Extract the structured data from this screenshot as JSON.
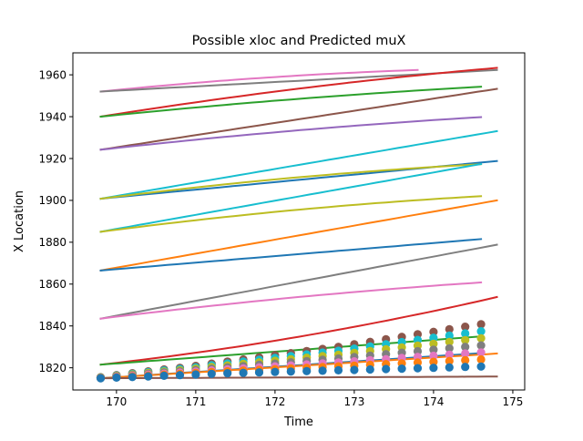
{
  "chart_data": {
    "type": "line",
    "title": "Possible xloc and Predicted muX",
    "xlabel": "Time",
    "ylabel": "X Location",
    "xlim": [
      169.45,
      175.15
    ],
    "ylim": [
      1809.4,
      1970.5
    ],
    "x_ticks": [
      {
        "value": 170,
        "label": "170"
      },
      {
        "value": 171,
        "label": "171"
      },
      {
        "value": 172,
        "label": "172"
      },
      {
        "value": 173,
        "label": "173"
      },
      {
        "value": 174,
        "label": "174"
      },
      {
        "value": 175,
        "label": "175"
      }
    ],
    "y_ticks": [
      {
        "value": 1820,
        "label": "1820"
      },
      {
        "value": 1840,
        "label": "1840"
      },
      {
        "value": 1860,
        "label": "1860"
      },
      {
        "value": 1880,
        "label": "1880"
      },
      {
        "value": 1900,
        "label": "1900"
      },
      {
        "value": 1920,
        "label": "1920"
      },
      {
        "value": 1940,
        "label": "1940"
      },
      {
        "value": 1960,
        "label": "1960"
      }
    ],
    "grid": false,
    "legend": "none",
    "lines": [
      {
        "color": "#e377c2",
        "x": [
          169.8,
          173.8
        ],
        "y": [
          1952.0,
          1962.3
        ],
        "curve": 0.5
      },
      {
        "color": "#7f7f7f",
        "x": [
          169.8,
          174.8
        ],
        "y": [
          1952.0,
          1962.3
        ],
        "curve": 0.0
      },
      {
        "color": "#d62728",
        "x": [
          169.8,
          174.8
        ],
        "y": [
          1940.0,
          1963.3
        ],
        "curve": 0.3
      },
      {
        "color": "#2ca02c",
        "x": [
          169.8,
          174.6
        ],
        "y": [
          1940.0,
          1954.3
        ],
        "curve": 0.3
      },
      {
        "color": "#8c564b",
        "x": [
          169.8,
          174.8
        ],
        "y": [
          1924.2,
          1953.3
        ],
        "curve": 0.0
      },
      {
        "color": "#9467bd",
        "x": [
          169.8,
          174.6
        ],
        "y": [
          1924.2,
          1939.8
        ],
        "curve": 0.3
      },
      {
        "color": "#17becf",
        "x": [
          169.8,
          174.8
        ],
        "y": [
          1900.8,
          1933.1
        ],
        "curve": 0.0
      },
      {
        "color": "#1f77b4",
        "x": [
          169.8,
          174.8
        ],
        "y": [
          1900.8,
          1918.8
        ],
        "curve": 0.0
      },
      {
        "color": "#bcbd22",
        "x": [
          169.8,
          174.6
        ],
        "y": [
          1900.8,
          1917.3
        ],
        "curve": 0.4
      },
      {
        "color": "#17becf",
        "x": [
          169.8,
          174.6
        ],
        "y": [
          1885.0,
          1917.4
        ],
        "curve": 0.0
      },
      {
        "color": "#bcbd22",
        "x": [
          169.8,
          174.6
        ],
        "y": [
          1885.0,
          1902.0
        ],
        "curve": 0.4
      },
      {
        "color": "#ff7f0e",
        "x": [
          169.8,
          174.8
        ],
        "y": [
          1866.5,
          1900.0
        ],
        "curve": 0.0
      },
      {
        "color": "#1f77b4",
        "x": [
          169.8,
          174.6
        ],
        "y": [
          1866.5,
          1881.5
        ],
        "curve": 0.0
      },
      {
        "color": "#7f7f7f",
        "x": [
          169.8,
          174.8
        ],
        "y": [
          1843.5,
          1878.8
        ],
        "curve": 0.0
      },
      {
        "color": "#e377c2",
        "x": [
          169.8,
          174.6
        ],
        "y": [
          1843.5,
          1860.8
        ],
        "curve": 0.3
      },
      {
        "color": "#d62728",
        "x": [
          169.8,
          174.8
        ],
        "y": [
          1821.5,
          1853.8
        ],
        "curve": -0.35
      },
      {
        "color": "#2ca02c",
        "x": [
          169.8,
          174.6
        ],
        "y": [
          1821.5,
          1835.0
        ],
        "curve": 0.0
      },
      {
        "color": "#1f77b4",
        "x": [
          169.8,
          174.6
        ],
        "y": [
          1815.0,
          1827.0
        ],
        "curve": 0.0
      },
      {
        "color": "#ff7f0e",
        "x": [
          169.8,
          174.8
        ],
        "y": [
          1815.0,
          1826.8
        ],
        "curve": 0.0
      },
      {
        "color": "#8c564b",
        "x": [
          169.8,
          174.8
        ],
        "y": [
          1815.0,
          1815.8
        ],
        "curve": 0.0
      }
    ],
    "scatter": {
      "x": [
        169.8,
        170.0,
        170.2,
        170.4,
        170.6,
        170.8,
        171.0,
        171.2,
        171.4,
        171.6,
        171.8,
        172.0,
        172.2,
        172.4,
        172.6,
        172.8,
        173.0,
        173.2,
        173.4,
        173.6,
        173.8,
        174.0,
        174.2,
        174.4,
        174.6
      ],
      "top_y": [
        1815.5,
        1816.5,
        1817.4,
        1818.3,
        1819.2,
        1820.0,
        1820.9,
        1822.0,
        1823.0,
        1824.0,
        1825.0,
        1826.0,
        1827.0,
        1828.0,
        1829.0,
        1830.0,
        1831.2,
        1832.4,
        1833.6,
        1834.8,
        1836.0,
        1837.2,
        1838.4,
        1839.6,
        1840.8
      ],
      "bottom_y": [
        1815.0,
        1815.3,
        1815.6,
        1815.9,
        1816.2,
        1816.5,
        1816.8,
        1817.1,
        1817.4,
        1817.6,
        1817.8,
        1818.0,
        1818.2,
        1818.4,
        1818.6,
        1818.8,
        1819.0,
        1819.2,
        1819.4,
        1819.6,
        1819.8,
        1820.0,
        1820.2,
        1820.4,
        1820.6
      ],
      "colors": [
        "#8c564b",
        "#17becf",
        "#bcbd22",
        "#7f7f7f",
        "#e377c2",
        "#ff7f0e",
        "#1f77b4"
      ]
    }
  }
}
